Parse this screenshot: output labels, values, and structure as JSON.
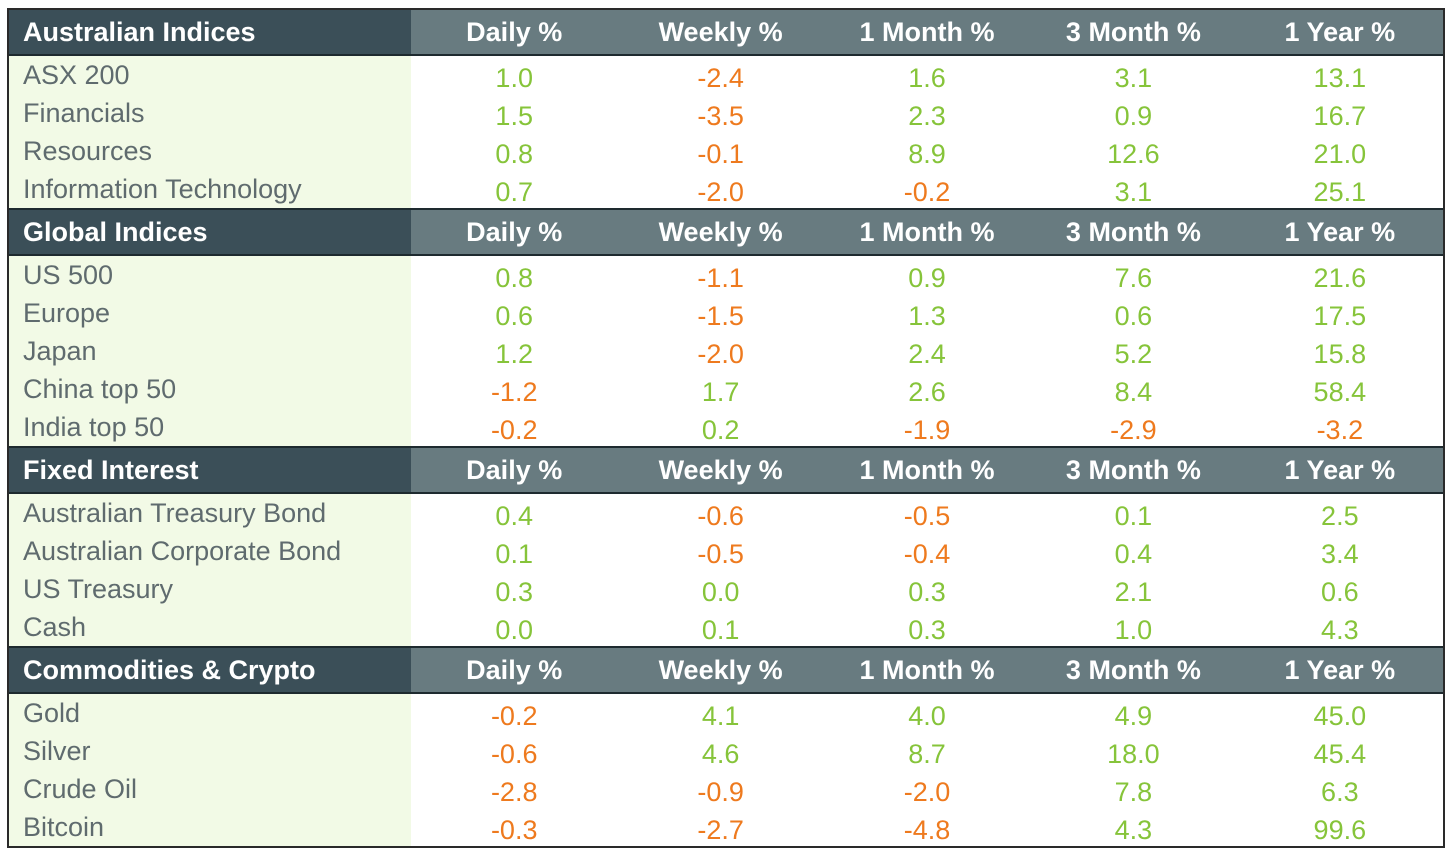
{
  "colors": {
    "positive": "#86c43a",
    "negative": "#ee7a1e",
    "header_bg": "#687b80",
    "header_name_bg": "#3b4f58",
    "label_bg": "#f2fae6"
  },
  "sections": [
    {
      "title": "Australian Indices",
      "columns": [
        "Daily %",
        "Weekly %",
        "1 Month %",
        "3 Month %",
        "1 Year %"
      ],
      "rows": [
        {
          "name": "ASX 200",
          "values": [
            "1.0",
            "-2.4",
            "1.6",
            "3.1",
            "13.1"
          ]
        },
        {
          "name": "Financials",
          "values": [
            "1.5",
            "-3.5",
            "2.3",
            "0.9",
            "16.7"
          ]
        },
        {
          "name": "Resources",
          "values": [
            "0.8",
            "-0.1",
            "8.9",
            "12.6",
            "21.0"
          ]
        },
        {
          "name": "Information Technology",
          "values": [
            "0.7",
            "-2.0",
            "-0.2",
            "3.1",
            "25.1"
          ]
        }
      ]
    },
    {
      "title": "Global Indices",
      "columns": [
        "Daily %",
        "Weekly %",
        "1 Month %",
        "3 Month %",
        "1 Year %"
      ],
      "rows": [
        {
          "name": "US 500",
          "values": [
            "0.8",
            "-1.1",
            "0.9",
            "7.6",
            "21.6"
          ]
        },
        {
          "name": "Europe",
          "values": [
            "0.6",
            "-1.5",
            "1.3",
            "0.6",
            "17.5"
          ]
        },
        {
          "name": "Japan",
          "values": [
            "1.2",
            "-2.0",
            "2.4",
            "5.2",
            "15.8"
          ]
        },
        {
          "name": "China top 50",
          "values": [
            "-1.2",
            "1.7",
            "2.6",
            "8.4",
            "58.4"
          ]
        },
        {
          "name": "India top 50",
          "values": [
            "-0.2",
            "0.2",
            "-1.9",
            "-2.9",
            "-3.2"
          ]
        }
      ]
    },
    {
      "title": "Fixed Interest",
      "columns": [
        "Daily %",
        "Weekly %",
        "1 Month %",
        "3 Month %",
        "1 Year %"
      ],
      "rows": [
        {
          "name": "Australian Treasury Bond",
          "values": [
            "0.4",
            "-0.6",
            "-0.5",
            "0.1",
            "2.5"
          ]
        },
        {
          "name": "Australian Corporate Bond",
          "values": [
            "0.1",
            "-0.5",
            "-0.4",
            "0.4",
            "3.4"
          ]
        },
        {
          "name": "US Treasury",
          "values": [
            "0.3",
            "0.0",
            "0.3",
            "2.1",
            "0.6"
          ]
        },
        {
          "name": "Cash",
          "values": [
            "0.0",
            "0.1",
            "0.3",
            "1.0",
            "4.3"
          ]
        }
      ]
    },
    {
      "title": "Commodities & Crypto",
      "columns": [
        "Daily %",
        "Weekly %",
        "1 Month %",
        "3 Month %",
        "1 Year %"
      ],
      "rows": [
        {
          "name": "Gold",
          "values": [
            "-0.2",
            "4.1",
            "4.0",
            "4.9",
            "45.0"
          ]
        },
        {
          "name": "Silver",
          "values": [
            "-0.6",
            "4.6",
            "8.7",
            "18.0",
            "45.4"
          ]
        },
        {
          "name": "Crude Oil",
          "values": [
            "-2.8",
            "-0.9",
            "-2.0",
            "7.8",
            "6.3"
          ]
        },
        {
          "name": "Bitcoin",
          "values": [
            "-0.3",
            "-2.7",
            "-4.8",
            "4.3",
            "99.6"
          ]
        }
      ]
    }
  ]
}
